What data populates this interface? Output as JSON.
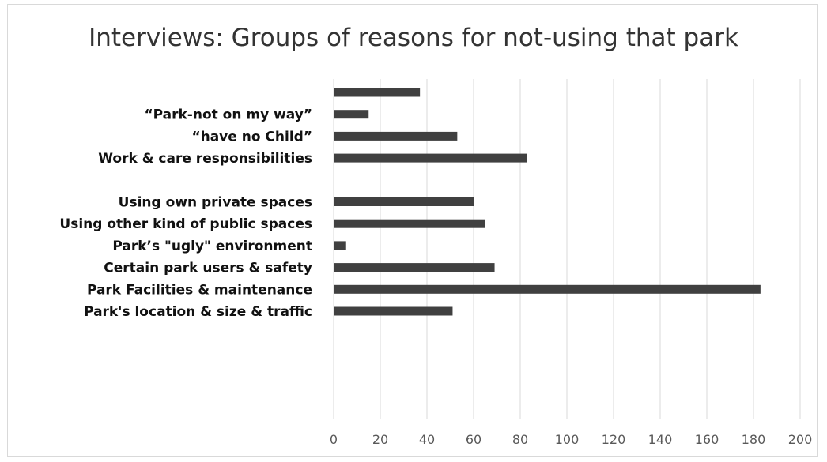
{
  "chart_data": {
    "type": "bar",
    "orientation": "horizontal",
    "title": "Interviews: Groups of reasons for not-using that park",
    "xlabel": "",
    "ylabel": "",
    "xlim": [
      0,
      200
    ],
    "x_ticks": [
      0,
      20,
      40,
      60,
      80,
      100,
      120,
      140,
      160,
      180,
      200
    ],
    "grid": true,
    "legend": "none",
    "bar_color": "#404040",
    "categories": [
      "",
      "“Park-not on my way”",
      "“have no Child”",
      "Work & care responsibilities",
      "",
      "Using own private spaces",
      "Using other kind of public spaces",
      "Park’s \"ugly\" environment",
      "Certain park users & safety",
      "Park Facilities & maintenance",
      "Park's location & size & traffic"
    ],
    "values": [
      37,
      15,
      53,
      83,
      null,
      60,
      65,
      5,
      69,
      183,
      51
    ]
  }
}
